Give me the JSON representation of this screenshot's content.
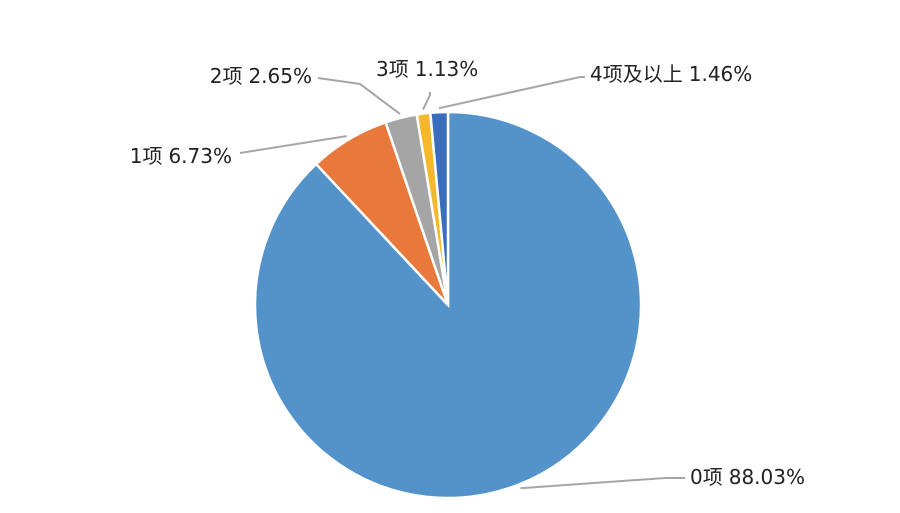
{
  "chart_data": {
    "type": "pie",
    "categories": [
      "0项",
      "1项",
      "2项",
      "3项",
      "4项及以上"
    ],
    "values": [
      88.03,
      6.73,
      2.65,
      1.13,
      1.46
    ],
    "value_labels": [
      "88.03%",
      "6.73%",
      "2.65%",
      "1.13%",
      "1.46%"
    ],
    "colors": [
      "#5393c9",
      "#e8793a",
      "#a5a5a5",
      "#f5b82b",
      "#3a6ebd"
    ],
    "start_angle": 0,
    "direction": "clockwise"
  }
}
